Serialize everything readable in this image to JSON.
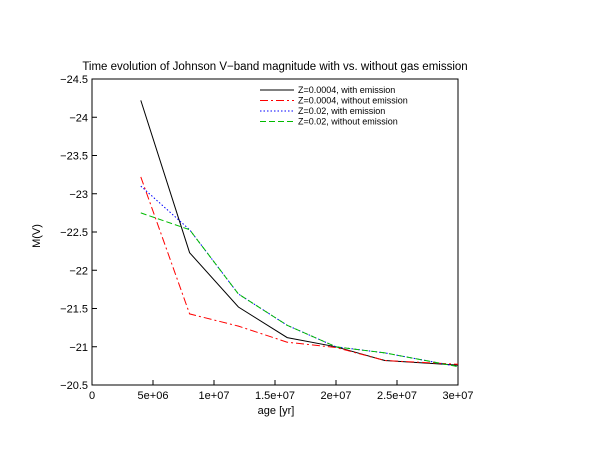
{
  "chart_data": {
    "type": "line",
    "title": "Time evolution of Johnson V−band magnitude with vs. without gas emission",
    "xlabel": "age [yr]",
    "ylabel": "M(V)",
    "xlim": [
      0,
      30000000
    ],
    "ylim": [
      -20.5,
      -24.5
    ],
    "y_inverted": true,
    "grid": false,
    "legend_position": "top-right",
    "x_ticks": [
      0,
      5000000,
      10000000,
      15000000,
      20000000,
      25000000,
      30000000
    ],
    "x_tick_labels": [
      "0",
      "5e+06",
      "1e+07",
      "1.5e+07",
      "2e+07",
      "2.5e+07",
      "3e+07"
    ],
    "y_ticks": [
      -20.5,
      -21,
      -21.5,
      -22,
      -22.5,
      -23,
      -23.5,
      -24,
      -24.5
    ],
    "y_tick_labels": [
      "−20.5",
      "−21",
      "−21.5",
      "−22",
      "−22.5",
      "−23",
      "−23.5",
      "−24",
      "−24.5"
    ],
    "series": [
      {
        "name": "Z=0.0004, with emission",
        "color": "#000000",
        "dash": "solid",
        "x": [
          4000000,
          8000000,
          12000000,
          16000000,
          20000000,
          24000000,
          30000000
        ],
        "y": [
          -24.22,
          -22.23,
          -21.52,
          -21.12,
          -21.0,
          -20.82,
          -20.76
        ]
      },
      {
        "name": "Z=0.0004, without emission",
        "color": "#ff0000",
        "dash": "dashdot",
        "x": [
          4000000,
          8000000,
          12000000,
          16000000,
          20000000,
          24000000,
          30000000
        ],
        "y": [
          -23.22,
          -21.43,
          -21.27,
          -21.06,
          -20.99,
          -20.82,
          -20.77
        ]
      },
      {
        "name": "Z=0.02, with emission",
        "color": "#0000ff",
        "dash": "dotted",
        "x": [
          4000000,
          8000000,
          12000000,
          16000000,
          20000000,
          24000000,
          30000000
        ],
        "y": [
          -23.1,
          -22.53,
          -21.69,
          -21.28,
          -21.0,
          -20.92,
          -20.74
        ]
      },
      {
        "name": "Z=0.02, without emission",
        "color": "#00bb00",
        "dash": "dashed",
        "x": [
          4000000,
          8000000,
          12000000,
          16000000,
          20000000,
          24000000,
          30000000
        ],
        "y": [
          -22.75,
          -22.53,
          -21.69,
          -21.28,
          -21.0,
          -20.92,
          -20.74
        ]
      }
    ]
  }
}
